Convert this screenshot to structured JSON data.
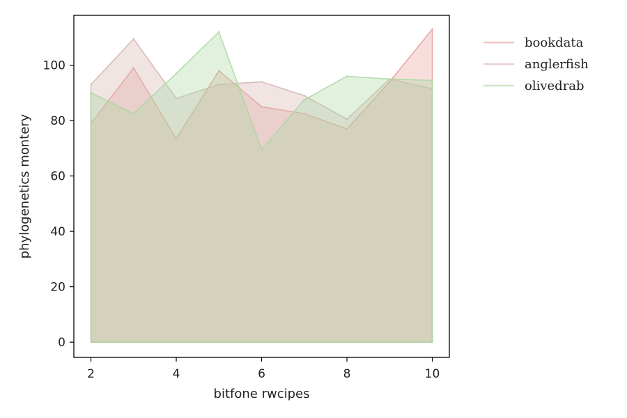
{
  "chart_data": {
    "type": "area",
    "title": "",
    "xlabel": "bitfone rwcipes",
    "ylabel": "phylogenetics montery",
    "xlim": [
      1.6,
      10.4
    ],
    "ylim": [
      -5.5,
      118
    ],
    "xticks": [
      2,
      4,
      6,
      8,
      10
    ],
    "yticks": [
      0,
      20,
      40,
      60,
      80,
      100
    ],
    "grid": false,
    "legend_position": "outside-top-right",
    "x": [
      2,
      3,
      4,
      5,
      6,
      7,
      8,
      9,
      10
    ],
    "series": [
      {
        "name": "bookdata",
        "color": "#e8a09a",
        "values": [
          79,
          99,
          73.5,
          98,
          85,
          82.5,
          77,
          94,
          113
        ]
      },
      {
        "name": "anglerfish",
        "color": "#d4b4b0",
        "values": [
          93,
          109.5,
          88,
          93,
          94,
          89,
          80.5,
          95,
          91.5
        ]
      },
      {
        "name": "olivedrab",
        "color": "#a8d8a0",
        "values": [
          90,
          82.5,
          97,
          112,
          69.5,
          87.5,
          96,
          95,
          94.5
        ]
      }
    ]
  }
}
